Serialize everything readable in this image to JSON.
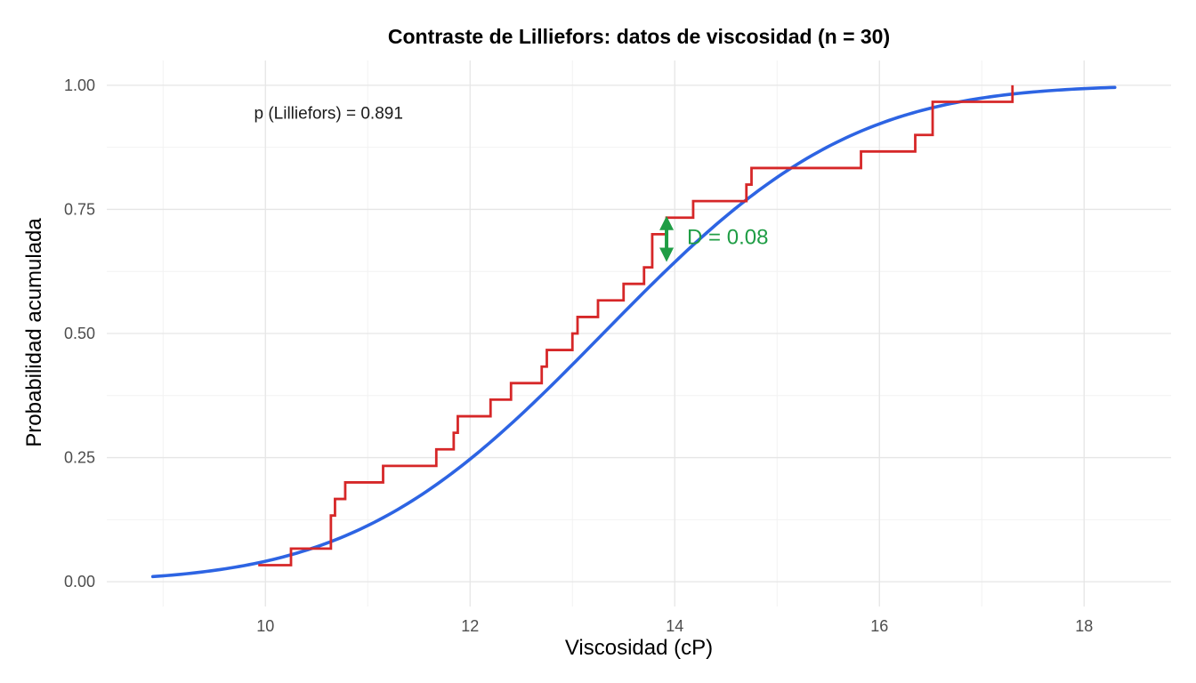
{
  "chart_data": {
    "type": "line",
    "title": "Contraste de Lilliefors: datos de viscosidad (n = 30)",
    "xlabel": "Viscosidad (cP)",
    "ylabel": "Probabilidad acumulada",
    "xlim": [
      8.45,
      18.85
    ],
    "ylim": [
      -0.05,
      1.05
    ],
    "x_ticks": [
      10,
      12,
      14,
      16,
      18
    ],
    "x_tick_labels": [
      "10",
      "12",
      "14",
      "16",
      "18"
    ],
    "y_ticks": [
      0,
      0.25,
      0.5,
      0.75,
      1
    ],
    "y_tick_labels": [
      "0.00",
      "0.25",
      "0.50",
      "0.75",
      "1.00"
    ],
    "grid": true,
    "colors": {
      "ecdf": "#d62728",
      "normal_cdf": "#2d64e3",
      "d_marker": "#1f9d45"
    },
    "normal_cdf": {
      "mean": 13.3,
      "sd": 1.9,
      "x_range": [
        8.9,
        18.3
      ]
    },
    "ecdf": {
      "x": [
        9.93,
        10.25,
        10.64,
        10.68,
        10.78,
        11.15,
        11.67,
        11.84,
        11.88,
        12.2,
        12.4,
        12.7,
        12.75,
        13.0,
        13.05,
        13.25,
        13.5,
        13.7,
        13.78,
        13.92,
        14.18,
        14.7,
        14.75,
        15.82,
        16.35,
        16.52,
        17.3
      ],
      "y": [
        0.0333,
        0.0667,
        0.1333,
        0.1667,
        0.2,
        0.2333,
        0.2667,
        0.3,
        0.3333,
        0.3667,
        0.4,
        0.4333,
        0.4667,
        0.5,
        0.5333,
        0.5667,
        0.6,
        0.6333,
        0.7,
        0.7333,
        0.7667,
        0.8,
        0.8333,
        0.8667,
        0.9,
        0.9667,
        1.0
      ],
      "x_end": 17.3
    },
    "d_statistic": {
      "x": 13.92,
      "y_low": 0.655,
      "y_high": 0.7333,
      "label": "D = 0.08"
    },
    "annotation": {
      "text": "p (Lilliefors) = 0.891",
      "x": 9.95,
      "y": 0.945
    }
  }
}
